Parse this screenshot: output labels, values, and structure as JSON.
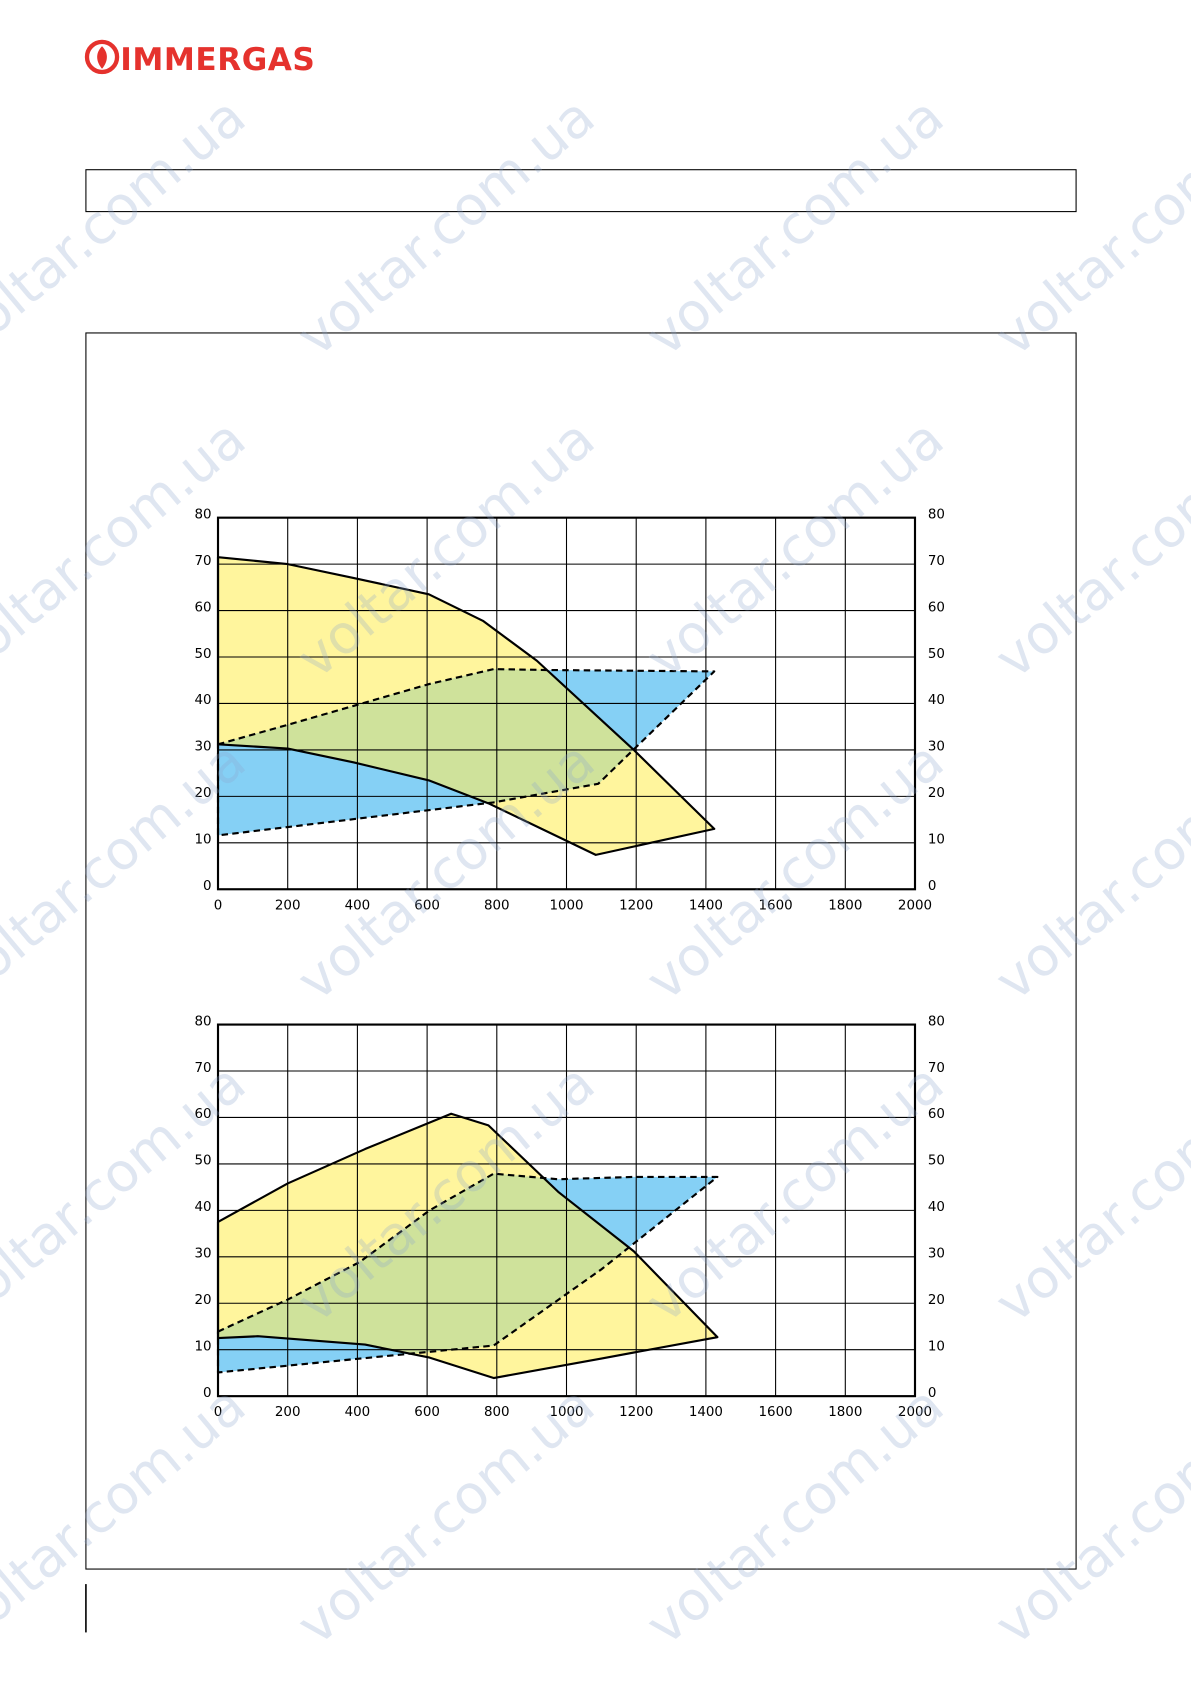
{
  "header": {
    "logo": "IMMERGAS"
  },
  "watermark": "voltar.com.ua",
  "chart_data": [
    {
      "type": "area",
      "xlim": [
        0,
        2000
      ],
      "ylim": [
        0,
        80
      ],
      "y2lim": [
        0,
        80
      ],
      "xticks": [
        0,
        200,
        400,
        600,
        800,
        1000,
        1200,
        1400,
        1600,
        1800,
        2000
      ],
      "yticks": [
        0,
        10,
        20,
        30,
        40,
        50,
        60,
        70,
        80
      ],
      "y2ticks": [
        0,
        10,
        20,
        30,
        40,
        50,
        60,
        70,
        80
      ],
      "grid": true,
      "overlap_color": "#cfe29b",
      "series": [
        {
          "color": "#fff59d",
          "line": "solid",
          "x": [
            0,
            200,
            390,
            605,
            760,
            915,
            1193,
            1424,
            1084,
            776,
            607,
            390,
            200,
            0
          ],
          "values": [
            71.5,
            70,
            67,
            63.5,
            57.8,
            49.2,
            30,
            13,
            7.4,
            18.5,
            23.4,
            27.3,
            30.3,
            31.2
          ]
        },
        {
          "color": "#85d0f5",
          "line": "dashed",
          "x": [
            0,
            200,
            390,
            607,
            791,
            945,
            1424,
            1091,
            791,
            0
          ],
          "values": [
            31.2,
            35.4,
            39.5,
            44.2,
            47.4,
            47.2,
            46.9,
            22.7,
            18.7,
            11.6
          ]
        }
      ]
    },
    {
      "type": "area",
      "xlim": [
        0,
        2000
      ],
      "ylim": [
        0,
        80
      ],
      "y2lim": [
        0,
        80
      ],
      "xticks": [
        0,
        200,
        400,
        600,
        800,
        1000,
        1200,
        1400,
        1600,
        1800,
        2000
      ],
      "yticks": [
        0,
        10,
        20,
        30,
        40,
        50,
        60,
        70,
        80
      ],
      "y2ticks": [
        0,
        10,
        20,
        30,
        40,
        50,
        60,
        70,
        80
      ],
      "grid": true,
      "overlap_color": "#cfe29b",
      "series": [
        {
          "color": "#fff59d",
          "line": "solid",
          "x": [
            0,
            200,
            422,
            669,
            776,
            976,
            1193,
            1433,
            1100,
            791,
            607,
            422,
            114,
            0
          ],
          "values": [
            37.5,
            45.8,
            53.2,
            60.8,
            58.3,
            44,
            31.2,
            12.7,
            8.1,
            3.9,
            8.3,
            11.1,
            12.9,
            12.5
          ]
        },
        {
          "color": "#85d0f5",
          "line": "dashed",
          "x": [
            0,
            200,
            407,
            607,
            791,
            976,
            1193,
            1433,
            1100,
            791,
            0
          ],
          "values": [
            13.9,
            20.8,
            28.9,
            40,
            47.9,
            46.7,
            47.2,
            47.2,
            27.3,
            10.9,
            5.1
          ]
        }
      ]
    }
  ]
}
